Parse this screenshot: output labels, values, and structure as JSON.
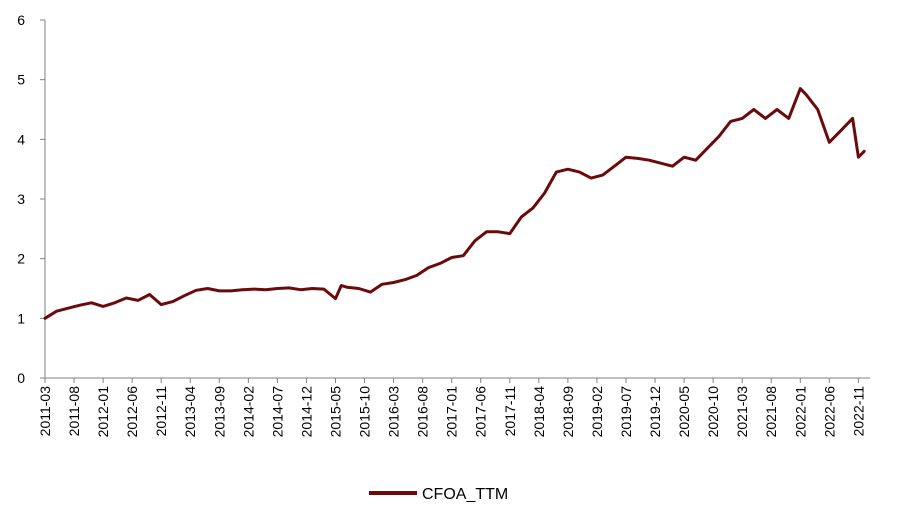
{
  "chart_data": {
    "type": "line",
    "title": "",
    "xlabel": "",
    "ylabel": "",
    "ylim": [
      0,
      6
    ],
    "yticks": [
      0,
      1,
      2,
      3,
      4,
      5,
      6
    ],
    "xlim": [
      "2011-03",
      "2023-01"
    ],
    "xticks": [
      "2011-03",
      "2011-08",
      "2012-01",
      "2012-06",
      "2012-11",
      "2013-04",
      "2013-09",
      "2014-02",
      "2014-07",
      "2014-12",
      "2015-05",
      "2015-10",
      "2016-03",
      "2016-08",
      "2017-01",
      "2017-06",
      "2017-11",
      "2018-04",
      "2018-09",
      "2019-02",
      "2019-07",
      "2019-12",
      "2020-05",
      "2020-10",
      "2021-03",
      "2021-08",
      "2022-01",
      "2022-06",
      "2022-11"
    ],
    "grid": false,
    "legend_position": "bottom-center",
    "series": [
      {
        "name": "CFOA_TTM",
        "color": "#6B0A0A",
        "x": [
          "2011-03",
          "2011-05",
          "2011-07",
          "2011-09",
          "2011-11",
          "2012-01",
          "2012-03",
          "2012-05",
          "2012-07",
          "2012-09",
          "2012-11",
          "2013-01",
          "2013-03",
          "2013-05",
          "2013-07",
          "2013-09",
          "2013-11",
          "2014-01",
          "2014-03",
          "2014-05",
          "2014-07",
          "2014-09",
          "2014-11",
          "2015-01",
          "2015-03",
          "2015-05",
          "2015-06",
          "2015-07",
          "2015-09",
          "2015-11",
          "2016-01",
          "2016-03",
          "2016-05",
          "2016-07",
          "2016-09",
          "2016-11",
          "2017-01",
          "2017-03",
          "2017-05",
          "2017-07",
          "2017-09",
          "2017-11",
          "2018-01",
          "2018-03",
          "2018-05",
          "2018-07",
          "2018-09",
          "2018-11",
          "2019-01",
          "2019-03",
          "2019-05",
          "2019-07",
          "2019-09",
          "2019-11",
          "2020-01",
          "2020-03",
          "2020-05",
          "2020-07",
          "2020-09",
          "2020-11",
          "2021-01",
          "2021-03",
          "2021-05",
          "2021-07",
          "2021-09",
          "2021-11",
          "2022-01",
          "2022-02",
          "2022-04",
          "2022-06",
          "2022-08",
          "2022-10",
          "2022-11",
          "2022-12"
        ],
        "values": [
          1.0,
          1.12,
          1.17,
          1.22,
          1.26,
          1.2,
          1.26,
          1.34,
          1.3,
          1.4,
          1.23,
          1.28,
          1.38,
          1.47,
          1.5,
          1.46,
          1.46,
          1.48,
          1.49,
          1.48,
          1.5,
          1.51,
          1.48,
          1.5,
          1.49,
          1.33,
          1.55,
          1.52,
          1.5,
          1.44,
          1.57,
          1.6,
          1.65,
          1.72,
          1.85,
          1.92,
          2.02,
          2.05,
          2.3,
          2.45,
          2.45,
          2.42,
          2.7,
          2.85,
          3.1,
          3.45,
          3.5,
          3.45,
          3.35,
          3.4,
          3.55,
          3.7,
          3.68,
          3.65,
          3.6,
          3.55,
          3.7,
          3.65,
          3.85,
          4.05,
          4.3,
          4.35,
          4.5,
          4.35,
          4.5,
          4.35,
          4.85,
          4.75,
          4.5,
          3.95,
          4.15,
          4.35,
          3.7,
          3.8
        ]
      }
    ]
  }
}
